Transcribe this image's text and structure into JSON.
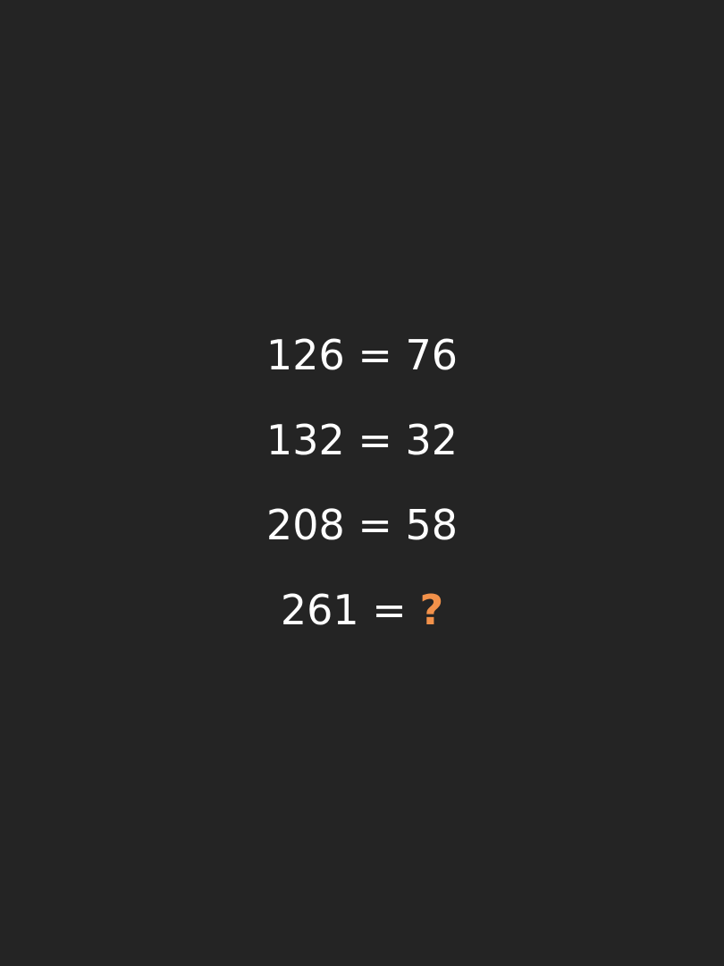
{
  "colors": {
    "background": "#242424",
    "text": "#ffffff",
    "accent": "#f2914a"
  },
  "puzzle": {
    "rows": [
      {
        "left": "126",
        "equals": "=",
        "right": "76"
      },
      {
        "left": "132",
        "equals": "=",
        "right": "32"
      },
      {
        "left": "208",
        "equals": "=",
        "right": "58"
      },
      {
        "left": "261",
        "equals": "=",
        "right": "?"
      }
    ]
  }
}
